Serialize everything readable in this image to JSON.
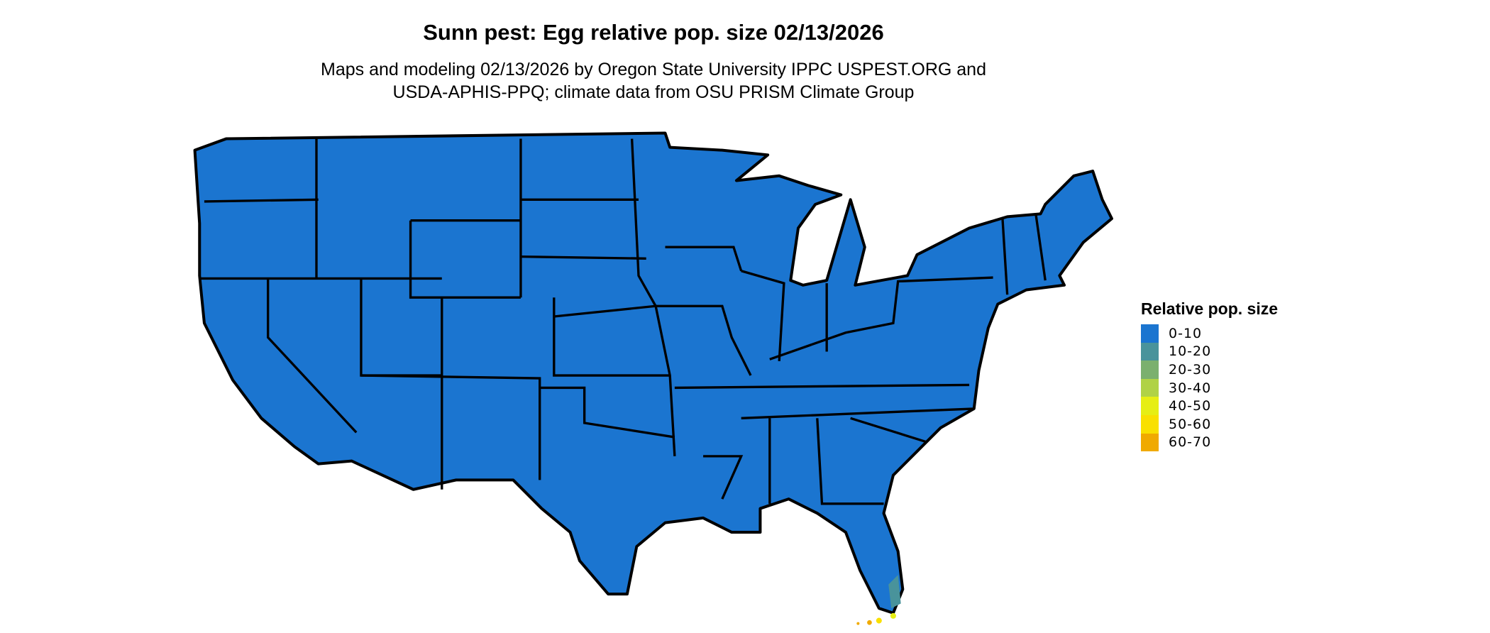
{
  "title": "Sunn pest: Egg relative pop. size 02/13/2026",
  "subtitle_lines": [
    "Maps and modeling 02/13/2026 by Oregon State University IPPC USPEST.ORG and",
    "USDA-APHIS-PPQ; climate data from OSU PRISM Climate Group"
  ],
  "map": {
    "land_color": "#1874CD",
    "border_color": "#000000"
  },
  "legend": {
    "title": "Relative pop. size",
    "items": [
      {
        "label": "0-10",
        "color": "#1B75D0"
      },
      {
        "label": "10-20",
        "color": "#49939B"
      },
      {
        "label": "20-30",
        "color": "#7BB06E"
      },
      {
        "label": "30-40",
        "color": "#B0D246"
      },
      {
        "label": "40-50",
        "color": "#E6EE14"
      },
      {
        "label": "50-60",
        "color": "#F9E000"
      },
      {
        "label": "60-70",
        "color": "#F0AA00"
      }
    ]
  }
}
